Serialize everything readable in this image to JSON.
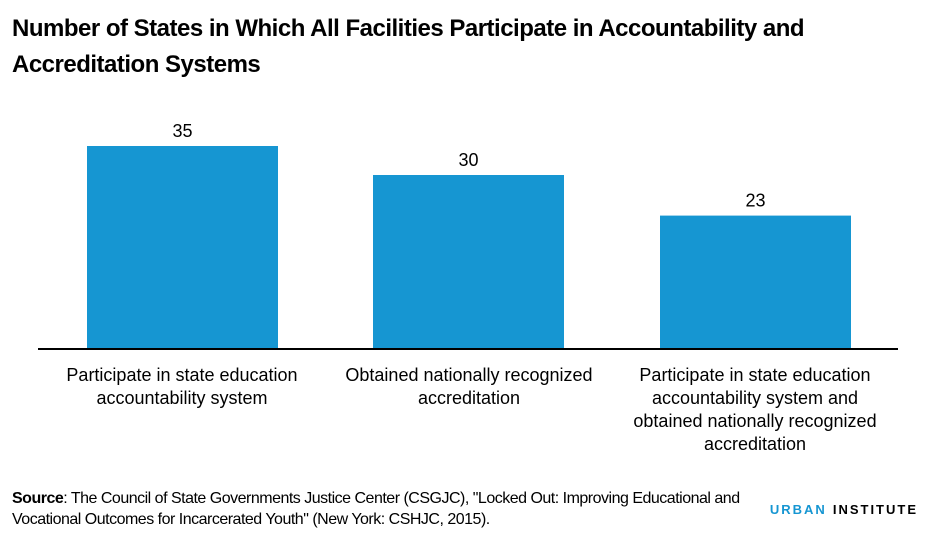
{
  "chart_data": {
    "type": "bar",
    "title": "Number of States in Which All Facilities Participate in Accountability and Accreditation Systems",
    "categories": [
      "Participate in state education accountability system",
      "Obtained nationally recognized accreditation",
      "Participate in state education accountability system and obtained nationally recognized accreditation"
    ],
    "values": [
      35,
      30,
      23
    ],
    "data_labels": [
      "35",
      "30",
      "23"
    ],
    "xlabel": "",
    "ylabel": "",
    "ylim": [
      0,
      35
    ],
    "grid": false,
    "bar_color": "#1696d2"
  },
  "source": {
    "label": "Source",
    "text": ": The Council of State Governments Justice Center (CSGJC), \"Locked Out: Improving Educational and Vocational Outcomes for Incarcerated Youth\" (New York: CSHJC, 2015)."
  },
  "logo": {
    "part1": "URBAN",
    "part2": "INSTITUTE"
  }
}
